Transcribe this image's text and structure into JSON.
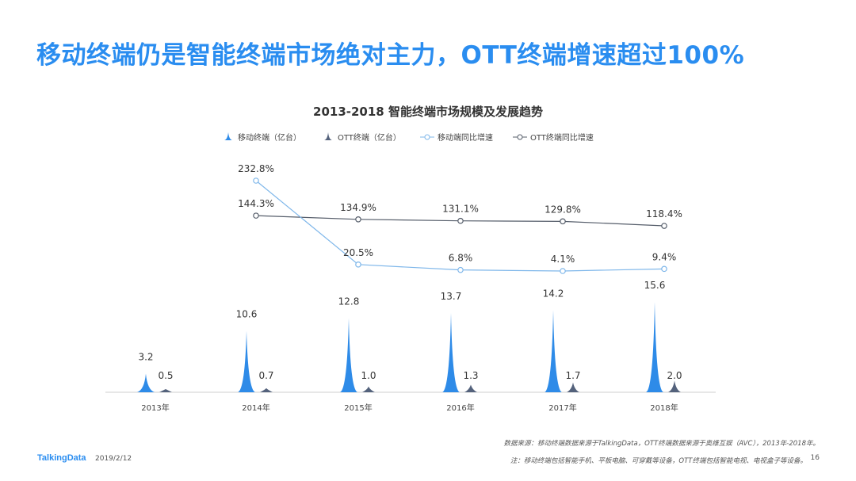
{
  "headline": "移动终端仍是智能终端市场绝对主力，OTT终端增速超过100%",
  "colors": {
    "accent": "#2a8df0",
    "mobile": "#2e8be8",
    "ott": "#54627c",
    "mobile_line": "#7fb7ea",
    "ott_line": "#555d6a"
  },
  "chart_data": {
    "type": "bar",
    "title": "2013-2018  智能终端市场规模及发展趋势",
    "categories": [
      "2013年",
      "2014年",
      "2015年",
      "2016年",
      "2017年",
      "2018年"
    ],
    "series": [
      {
        "name": "移动终端（亿台）",
        "kind": "bar",
        "values": [
          3.2,
          10.6,
          12.8,
          13.7,
          14.2,
          15.6
        ],
        "labels": [
          "3.2",
          "10.6",
          "12.8",
          "13.7",
          "14.2",
          "15.6"
        ]
      },
      {
        "name": "OTT终端（亿台）",
        "kind": "bar",
        "values": [
          0.5,
          0.7,
          1.0,
          1.3,
          1.7,
          2.0
        ],
        "labels": [
          "0.5",
          "0.7",
          "1.0",
          "1.3",
          "1.7",
          "2.0"
        ]
      },
      {
        "name": "移动端同比增速",
        "kind": "line",
        "values": [
          null,
          232.8,
          20.5,
          6.8,
          4.1,
          9.4
        ],
        "labels": [
          "",
          "232.8%",
          "20.5%",
          "6.8%",
          "4.1%",
          "9.4%"
        ]
      },
      {
        "name": "OTT终端同比增速",
        "kind": "line",
        "values": [
          null,
          144.3,
          134.9,
          131.1,
          129.8,
          118.4
        ],
        "labels": [
          "",
          "144.3%",
          "134.9%",
          "131.1%",
          "129.8%",
          "118.4%"
        ]
      }
    ],
    "legend_position": "top",
    "grid": false
  },
  "footer": {
    "brand": "TalkingData",
    "date": "2019/2/12",
    "source": "数据来源：移动终端数据来源于TalkingData，OTT终端数据来源于奥维互娱（AVC），2013年-2018年。",
    "remark": "注：移动终端包括智能手机、平板电脑、可穿戴等设备，OTT终端包括智能电视、电视盒子等设备。",
    "page": "16"
  }
}
